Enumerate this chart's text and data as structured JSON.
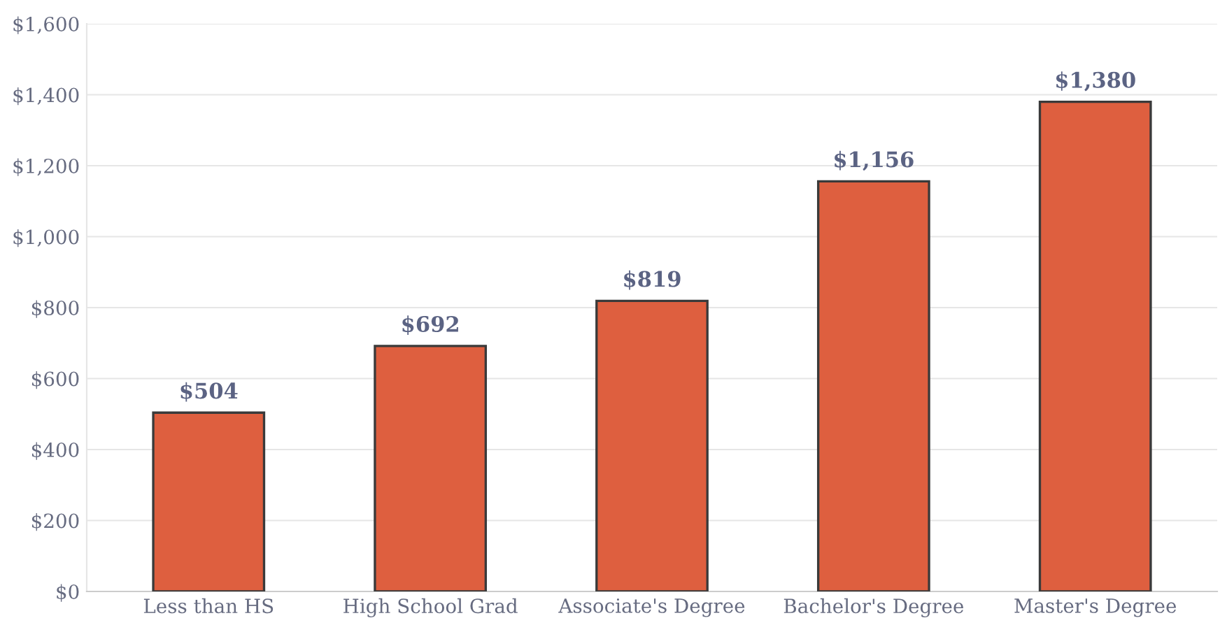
{
  "chart_data": {
    "type": "bar",
    "categories": [
      "Less than HS",
      "High School Grad",
      "Associate's Degree",
      "Bachelor's Degree",
      "Master's Degree"
    ],
    "values": [
      504,
      692,
      819,
      1156,
      1380
    ],
    "value_labels": [
      "$504",
      "$692",
      "$819",
      "$1,156",
      "$1,380"
    ],
    "color": "#de5f3f",
    "ylim": [
      0,
      1600
    ],
    "yticks": [
      {
        "value": 0,
        "label": "$0"
      },
      {
        "value": 200,
        "label": "$200"
      },
      {
        "value": 400,
        "label": "$400"
      },
      {
        "value": 600,
        "label": "$600"
      },
      {
        "value": 800,
        "label": "$800"
      },
      {
        "value": 1000,
        "label": "$1,000"
      },
      {
        "value": 1200,
        "label": "$1,200"
      },
      {
        "value": 1400,
        "label": "$1,400"
      },
      {
        "value": 1600,
        "label": "$1,600"
      }
    ],
    "grid": "y"
  }
}
